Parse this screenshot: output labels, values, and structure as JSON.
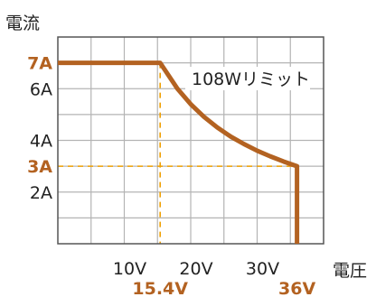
{
  "chart_data": {
    "type": "line",
    "ylabel": "電流",
    "xlabel": "電圧",
    "xlim": [
      0,
      40
    ],
    "ylim": [
      0,
      8
    ],
    "x_ticks": [
      {
        "value": 10,
        "label": "10V"
      },
      {
        "value": 20,
        "label": "20V"
      },
      {
        "value": 30,
        "label": "30V"
      }
    ],
    "y_ticks": [
      {
        "value": 2,
        "label": "2A"
      },
      {
        "value": 4,
        "label": "4A"
      },
      {
        "value": 6,
        "label": "6A"
      }
    ],
    "highlight_ticks": {
      "y": [
        {
          "value": 7,
          "label": "7A"
        },
        {
          "value": 3,
          "label": "3A"
        }
      ],
      "x": [
        {
          "value": 15.4,
          "label": "15.4V"
        },
        {
          "value": 36,
          "label": "36V"
        }
      ]
    },
    "annotation": "108Wリミット",
    "power_limit_w": 108,
    "series": [
      {
        "x": [
          0,
          15.4,
          18,
          20,
          22,
          24,
          26,
          28,
          30,
          32,
          34,
          36,
          36
        ],
        "y": [
          7,
          7,
          6.0,
          5.4,
          4.91,
          4.5,
          4.15,
          3.86,
          3.6,
          3.38,
          3.18,
          3,
          0
        ]
      }
    ],
    "colors": {
      "curve": "#b36221",
      "highlight_text": "#b36221",
      "dashed": "#f0a000"
    },
    "grid": true
  }
}
